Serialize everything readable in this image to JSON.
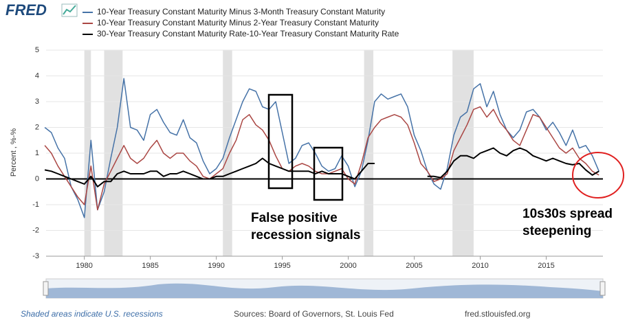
{
  "chart_data": {
    "type": "line",
    "logo": "FRED",
    "y_label": "Percent , %-%",
    "xlim": [
      1977.1,
      2019.3
    ],
    "xticks": [
      1980,
      1985,
      1990,
      1995,
      2000,
      2005,
      2010,
      2015
    ],
    "ylim": [
      -3,
      5
    ],
    "yticks": [
      -3,
      -2,
      -1,
      0,
      1,
      2,
      3,
      4,
      5
    ],
    "grid": true,
    "recessions": [
      [
        1980.0,
        1980.5
      ],
      [
        1981.5,
        1982.9
      ],
      [
        1990.5,
        1991.2
      ],
      [
        2001.2,
        2001.9
      ],
      [
        2007.9,
        2009.5
      ]
    ],
    "x": [
      1977,
      1977.5,
      1978,
      1978.5,
      1979,
      1979.5,
      1980,
      1980.5,
      1981,
      1981.5,
      1982,
      1982.5,
      1983,
      1983.5,
      1984,
      1984.5,
      1985,
      1985.5,
      1986,
      1986.5,
      1987,
      1987.5,
      1988,
      1988.5,
      1989,
      1989.5,
      1990,
      1990.5,
      1991,
      1991.5,
      1992,
      1992.5,
      1993,
      1993.5,
      1994,
      1994.5,
      1995,
      1995.5,
      1996,
      1996.5,
      1997,
      1997.5,
      1998,
      1998.5,
      1999,
      1999.5,
      2000,
      2000.5,
      2001,
      2001.5,
      2002,
      2002.5,
      2003,
      2003.5,
      2004,
      2004.5,
      2005,
      2005.5,
      2006,
      2006.5,
      2007,
      2007.5,
      2008,
      2008.5,
      2009,
      2009.5,
      2010,
      2010.5,
      2011,
      2011.5,
      2012,
      2012.5,
      2013,
      2013.5,
      2014,
      2014.5,
      2015,
      2015.5,
      2016,
      2016.5,
      2017,
      2017.5,
      2018,
      2018.5,
      2019
    ],
    "series": [
      {
        "name": "10-Year Treasury Constant Maturity Minus 3-Month Treasury Constant Maturity",
        "color": "#4572a7",
        "width": 1.5,
        "values": [
          2.0,
          1.8,
          1.2,
          0.8,
          -0.3,
          -0.8,
          -1.5,
          1.5,
          -1.2,
          -0.5,
          0.8,
          2.0,
          3.9,
          2.0,
          1.9,
          1.5,
          2.5,
          2.7,
          2.2,
          1.8,
          1.7,
          2.3,
          1.6,
          1.4,
          0.7,
          0.2,
          0.4,
          0.8,
          1.6,
          2.3,
          3.0,
          3.5,
          3.4,
          2.8,
          2.7,
          3.0,
          1.8,
          0.6,
          0.8,
          1.3,
          1.4,
          1.0,
          0.5,
          0.3,
          0.4,
          0.9,
          0.5,
          -0.3,
          0.3,
          1.5,
          3.0,
          3.3,
          3.1,
          3.2,
          3.3,
          2.8,
          1.7,
          1.1,
          0.3,
          -0.2,
          -0.4,
          0.4,
          1.7,
          2.4,
          2.6,
          3.5,
          3.7,
          2.8,
          3.4,
          2.5,
          1.9,
          1.6,
          1.9,
          2.6,
          2.7,
          2.4,
          1.9,
          2.2,
          1.8,
          1.3,
          1.9,
          1.2,
          1.3,
          0.9,
          0.3
        ]
      },
      {
        "name": "10-Year Treasury Constant Maturity Minus 2-Year Treasury Constant Maturity",
        "color": "#aa4643",
        "width": 1.5,
        "values": [
          1.3,
          1.0,
          0.5,
          0.1,
          -0.3,
          -0.7,
          -1.0,
          0.5,
          -1.2,
          -0.2,
          0.3,
          0.8,
          1.3,
          0.8,
          0.6,
          0.8,
          1.2,
          1.5,
          1.0,
          0.8,
          1.0,
          1.0,
          0.7,
          0.5,
          0.1,
          0.0,
          0.2,
          0.4,
          1.0,
          1.5,
          2.3,
          2.5,
          2.1,
          1.9,
          1.5,
          0.9,
          0.4,
          0.3,
          0.5,
          0.6,
          0.5,
          0.3,
          0.2,
          0.2,
          0.3,
          0.4,
          0.0,
          -0.2,
          0.6,
          1.6,
          2.0,
          2.3,
          2.4,
          2.5,
          2.4,
          2.1,
          1.4,
          0.6,
          0.3,
          -0.1,
          0.0,
          0.2,
          1.1,
          1.6,
          2.1,
          2.7,
          2.8,
          2.4,
          2.7,
          2.2,
          1.9,
          1.5,
          1.3,
          1.9,
          2.5,
          2.4,
          2.0,
          1.6,
          1.2,
          1.0,
          1.2,
          0.8,
          0.6,
          0.3,
          0.15
        ]
      },
      {
        "name": "30-Year Treasury Constant Maturity Rate-10-Year Treasury Constant Maturity Rate",
        "color": "#000000",
        "width": 2,
        "values": [
          0.35,
          0.3,
          0.2,
          0.1,
          0.0,
          -0.1,
          -0.2,
          0.1,
          -0.3,
          -0.1,
          -0.1,
          0.2,
          0.3,
          0.2,
          0.2,
          0.2,
          0.3,
          0.3,
          0.1,
          0.2,
          0.2,
          0.3,
          0.2,
          0.1,
          0.0,
          0.0,
          0.1,
          0.1,
          0.2,
          0.3,
          0.4,
          0.5,
          0.6,
          0.8,
          0.6,
          0.5,
          0.4,
          0.3,
          0.3,
          0.3,
          0.3,
          0.2,
          0.3,
          0.2,
          0.2,
          0.2,
          0.1,
          0.0,
          0.3,
          0.6,
          0.6,
          null,
          null,
          null,
          null,
          null,
          null,
          null,
          0.1,
          0.1,
          0.05,
          0.3,
          0.7,
          0.9,
          0.9,
          0.8,
          1.0,
          1.1,
          1.2,
          1.0,
          0.9,
          1.1,
          1.2,
          1.1,
          0.9,
          0.8,
          0.7,
          0.8,
          0.7,
          0.6,
          0.55,
          0.6,
          0.35,
          0.15,
          0.3
        ]
      }
    ],
    "annotations": [
      [
        "False positive",
        "recession signals"
      ],
      [
        "10s30s spread",
        "steepening"
      ]
    ],
    "footer": {
      "note": "Shaded areas indicate U.S. recessions",
      "source": "Sources: Board of Governors, St. Louis Fed",
      "site": "fred.stlouisfed.org"
    }
  }
}
